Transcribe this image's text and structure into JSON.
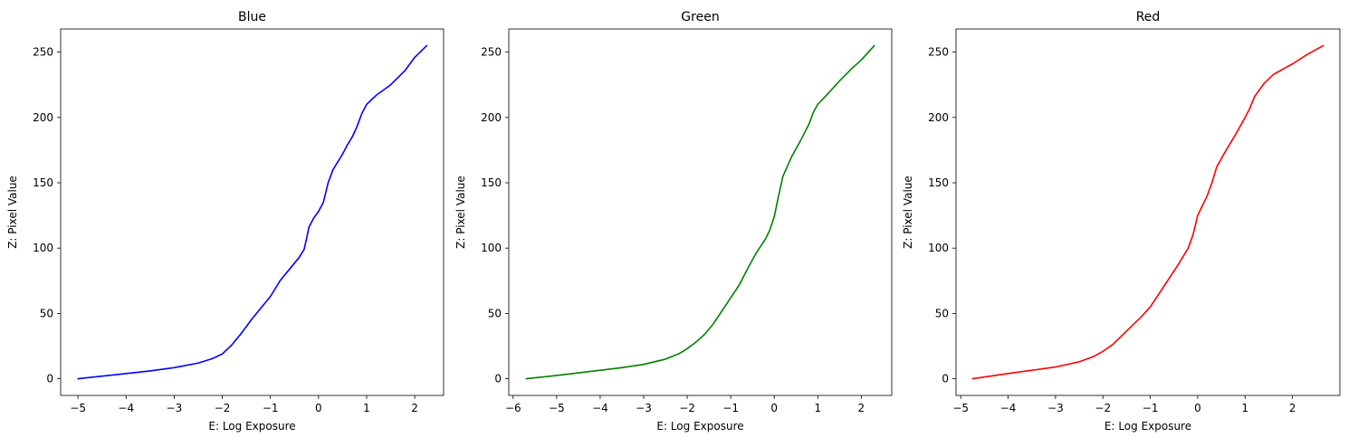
{
  "chart_data": [
    {
      "type": "line",
      "title": "Blue",
      "xlabel": "E: Log Exposure",
      "ylabel": "Z: Pixel Value",
      "xlim": [
        -5.36,
        2.6
      ],
      "ylim": [
        -12.75,
        267.75
      ],
      "xticks": [
        -5,
        -4,
        -3,
        -2,
        -1,
        0,
        1,
        2
      ],
      "yticks": [
        0,
        50,
        100,
        150,
        200,
        250
      ],
      "grid": false,
      "color": "#0000ff",
      "series": [
        {
          "x": [
            -5.0,
            -4.5,
            -4.0,
            -3.5,
            -3.0,
            -2.5,
            -2.2,
            -2.0,
            -1.8,
            -1.6,
            -1.4,
            -1.2,
            -1.0,
            -0.8,
            -0.6,
            -0.4,
            -0.3,
            -0.25,
            -0.2,
            -0.1,
            0.0,
            0.1,
            0.2,
            0.3,
            0.4,
            0.5,
            0.6,
            0.7,
            0.8,
            0.9,
            1.0,
            1.2,
            1.5,
            1.8,
            2.0,
            2.25
          ],
          "y": [
            0,
            2,
            4,
            6,
            8.5,
            12,
            15.5,
            19,
            26,
            35,
            45,
            54,
            63,
            75,
            84,
            93,
            99,
            107,
            116,
            123,
            128,
            135,
            150,
            160,
            166,
            172,
            179,
            185,
            193,
            203,
            210,
            217,
            225,
            236,
            246,
            255
          ]
        }
      ]
    },
    {
      "type": "line",
      "title": "Green",
      "xlabel": "E: Log Exposure",
      "ylabel": "Z: Pixel Value",
      "xlim": [
        -6.1,
        2.7
      ],
      "ylim": [
        -12.75,
        267.75
      ],
      "xticks": [
        -6,
        -5,
        -4,
        -3,
        -2,
        -1,
        0,
        1,
        2
      ],
      "yticks": [
        0,
        50,
        100,
        150,
        200,
        250
      ],
      "grid": false,
      "color": "#008000",
      "series": [
        {
          "x": [
            -5.7,
            -5.0,
            -4.5,
            -4.0,
            -3.5,
            -3.0,
            -2.5,
            -2.2,
            -2.0,
            -1.8,
            -1.6,
            -1.4,
            -1.2,
            -1.0,
            -0.8,
            -0.6,
            -0.4,
            -0.2,
            -0.1,
            0.0,
            0.1,
            0.2,
            0.4,
            0.6,
            0.8,
            0.9,
            1.0,
            1.2,
            1.5,
            1.8,
            2.0,
            2.3
          ],
          "y": [
            0,
            2.5,
            4.5,
            6.5,
            8.5,
            11,
            15,
            19,
            23,
            28,
            34,
            42,
            52,
            62,
            72,
            85,
            97,
            107,
            114,
            124,
            140,
            155,
            170,
            182,
            195,
            204,
            210,
            217,
            228,
            238,
            244,
            255
          ]
        }
      ]
    },
    {
      "type": "line",
      "title": "Red",
      "xlabel": "E: Log Exposure",
      "ylabel": "Z: Pixel Value",
      "xlim": [
        -5.1,
        3.0
      ],
      "ylim": [
        -12.75,
        267.75
      ],
      "xticks": [
        -5,
        -4,
        -3,
        -2,
        -1,
        0,
        1,
        2
      ],
      "yticks": [
        0,
        50,
        100,
        150,
        200,
        250
      ],
      "grid": false,
      "color": "#ff0000",
      "series": [
        {
          "x": [
            -4.75,
            -4.0,
            -3.5,
            -3.0,
            -2.5,
            -2.2,
            -2.0,
            -1.8,
            -1.6,
            -1.4,
            -1.2,
            -1.0,
            -0.8,
            -0.6,
            -0.4,
            -0.2,
            -0.1,
            0.0,
            0.2,
            0.3,
            0.4,
            0.6,
            0.8,
            1.0,
            1.1,
            1.2,
            1.4,
            1.6,
            2.0,
            2.3,
            2.65
          ],
          "y": [
            0,
            4,
            6.5,
            9,
            13,
            17,
            21,
            26,
            33,
            40,
            47,
            55,
            66,
            77,
            88,
            100,
            110,
            125,
            140,
            150,
            162,
            175,
            187,
            200,
            207,
            216,
            226,
            233,
            241,
            248,
            255
          ]
        }
      ]
    }
  ]
}
